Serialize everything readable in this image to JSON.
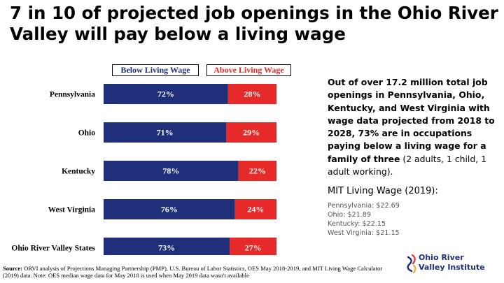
{
  "title": "7 in 10 of projected job openings in the Ohio River Valley will pay below a living wage",
  "legend": {
    "below": "Below Living Wage",
    "above": "Above Living Wage"
  },
  "colors": {
    "below": "#1f2f7a",
    "above": "#e62a2a"
  },
  "chart_data": {
    "type": "bar",
    "orientation": "horizontal",
    "stacked": true,
    "categories": [
      "Pennsylvania",
      "Ohio",
      "Kentucky",
      "West Virginia",
      "Ohio River Valley States"
    ],
    "series": [
      {
        "name": "Below Living Wage",
        "values": [
          72,
          71,
          78,
          76,
          73
        ],
        "labels": [
          "72%",
          "71%",
          "78%",
          "76%",
          "73%"
        ]
      },
      {
        "name": "Above Living Wage",
        "values": [
          28,
          29,
          22,
          24,
          27
        ],
        "labels": [
          "28%",
          "29%",
          "22%",
          "24%",
          "27%"
        ]
      }
    ],
    "xlim": [
      0,
      100
    ],
    "grid": false,
    "legend_position": "top"
  },
  "side": {
    "bold_text": "Out of over 17.2 million total job openings in Pennsylvania, Ohio, Kentucky, and West Virginia with wage data projected from 2018 to 2028, 73% are in occupations paying below a living wage for a family of three",
    "plain_text": "(2 adults, 1 child, 1 adult working).",
    "mit_title": "MIT Living Wage (2019):",
    "mit_items": [
      "Pennsylvania: $22.69",
      "Ohio: $21.89",
      "Kentucky: $22.15",
      "West Virginia: $21.15"
    ]
  },
  "source": {
    "label": "Source:",
    "text": "ORVI analysis of Projections Managing Partnership (PMP), U.S. Bureau of Labor Statistics, OES May 2018-2019, and MIT Living Wage Calculator (2019) data. Note: OES median wage data for May 2018 is used when May 2019 data wasn't available"
  },
  "logo": {
    "line1": "Ohio River",
    "line2": "Valley Institute",
    "icon": "ohio-river-valley-institute-logo-icon"
  }
}
